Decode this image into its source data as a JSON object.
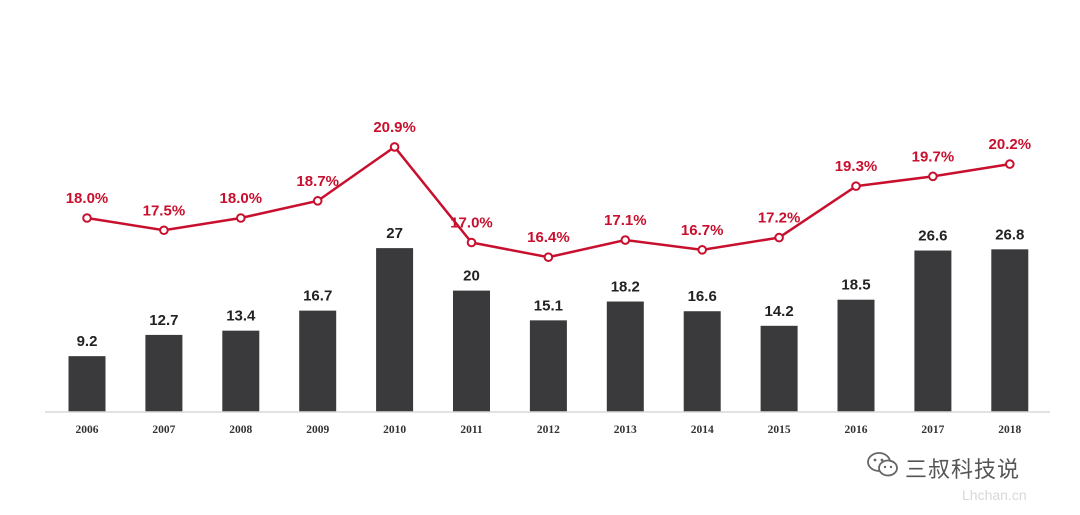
{
  "chart_data": {
    "type": "bar",
    "categories": [
      "2006",
      "2007",
      "2008",
      "2009",
      "2010",
      "2011",
      "2012",
      "2013",
      "2014",
      "2015",
      "2016",
      "2017",
      "2018"
    ],
    "series": [
      {
        "type": "bar",
        "values": [
          9.2,
          12.7,
          13.4,
          16.7,
          27,
          20,
          15.1,
          18.2,
          16.6,
          14.2,
          18.5,
          26.6,
          26.8
        ]
      },
      {
        "type": "line",
        "values": [
          18.0,
          17.5,
          18.0,
          18.7,
          20.9,
          17.0,
          16.4,
          17.1,
          16.7,
          17.2,
          19.3,
          19.7,
          20.2
        ]
      }
    ],
    "bar_labels": [
      "9.2",
      "12.7",
      "13.4",
      "16.7",
      "27",
      "20",
      "15.1",
      "18.2",
      "16.6",
      "14.2",
      "18.5",
      "26.6",
      "26.8"
    ],
    "line_labels": [
      "18.0%",
      "17.5%",
      "18.0%",
      "18.7%",
      "20.9%",
      "17.0%",
      "16.4%",
      "17.1%",
      "16.7%",
      "17.2%",
      "19.3%",
      "19.7%",
      "20.2%"
    ],
    "title": "",
    "xlabel": "",
    "ylabel": "",
    "grid": false,
    "colors": {
      "bar": "#3a3a3c",
      "line": "#c8102e",
      "axis": "#d9d9d9"
    }
  },
  "watermark": {
    "icon": "wechat-icon",
    "text": "三叔科技说",
    "sub": "Lhchan.cn"
  }
}
